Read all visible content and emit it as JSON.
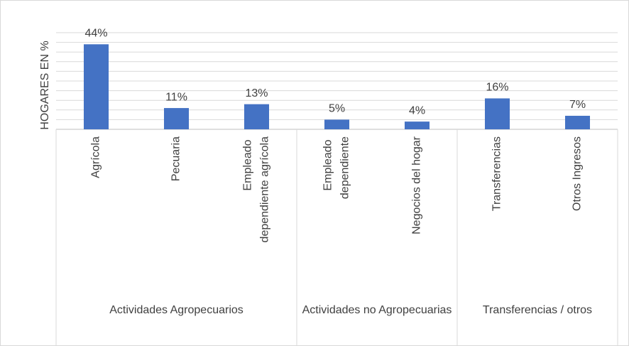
{
  "chart_data": {
    "type": "bar",
    "y_label": "HOGARES EN %",
    "categories": [
      "Agrícola",
      "Pecuaria",
      "Empleado dependiente agrícola",
      "Empleado dependiente",
      "Negocios del hogar",
      "Transferencias",
      "Otros Ingresos"
    ],
    "values": [
      44,
      11,
      13,
      5,
      4,
      16,
      7
    ],
    "value_labels": [
      "44%",
      "11%",
      "13%",
      "5%",
      "4%",
      "16%",
      "7%"
    ],
    "groups": [
      {
        "label": "Actividades Agropecuarios",
        "size": 3
      },
      {
        "label": "Actividades no Agropecuarias",
        "size": 2
      },
      {
        "label": "Transferencias / otros",
        "size": 2
      }
    ],
    "color": "#4472c4",
    "ylim": [
      0,
      50
    ],
    "yticks": [
      0,
      5,
      10,
      15,
      20,
      25,
      30,
      35,
      40,
      45,
      50
    ],
    "grid": true
  }
}
